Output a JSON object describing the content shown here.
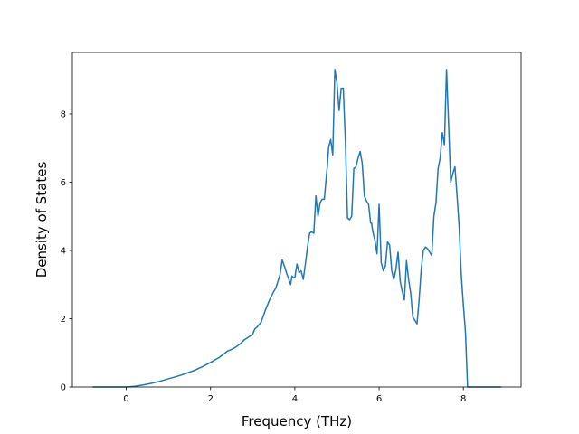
{
  "chart_data": {
    "type": "line",
    "title": "",
    "xlabel": "Frequency (THz)",
    "ylabel": "Density of States",
    "xlim": [
      -1.28,
      9.37
    ],
    "ylim": [
      0,
      9.8
    ],
    "xticks": [
      0,
      2,
      4,
      6,
      8
    ],
    "xtick_labels": [
      "0",
      "2",
      "4",
      "6",
      "8"
    ],
    "yticks": [
      0,
      2,
      4,
      6,
      8
    ],
    "ytick_labels": [
      "0",
      "2",
      "4",
      "6",
      "8"
    ],
    "grid": false,
    "legend": "none",
    "colors": {
      "line": "#1f77b4",
      "axes": "#000000",
      "background": "#ffffff"
    },
    "series": [
      {
        "x": [
          -0.8,
          -0.4,
          0.0,
          0.2,
          0.4,
          0.6,
          0.8,
          1.0,
          1.2,
          1.4,
          1.6,
          1.8,
          2.0,
          2.2,
          2.4,
          2.5,
          2.6,
          2.7,
          2.8,
          2.9,
          3.0,
          3.05,
          3.1,
          3.2,
          3.3,
          3.4,
          3.5,
          3.55,
          3.6,
          3.65,
          3.7,
          3.75,
          3.8,
          3.9,
          3.93,
          3.97,
          4.0,
          4.05,
          4.1,
          4.15,
          4.2,
          4.25,
          4.3,
          4.35,
          4.4,
          4.45,
          4.5,
          4.55,
          4.6,
          4.65,
          4.7,
          4.75,
          4.77,
          4.8,
          4.85,
          4.9,
          4.95,
          5.0,
          5.05,
          5.1,
          5.15,
          5.2,
          5.25,
          5.3,
          5.35,
          5.4,
          5.45,
          5.5,
          5.55,
          5.6,
          5.65,
          5.7,
          5.75,
          5.8,
          5.82,
          5.85,
          5.9,
          5.95,
          6.0,
          6.05,
          6.1,
          6.15,
          6.2,
          6.25,
          6.3,
          6.35,
          6.4,
          6.45,
          6.5,
          6.55,
          6.6,
          6.65,
          6.7,
          6.75,
          6.8,
          6.9,
          6.95,
          7.0,
          7.05,
          7.1,
          7.15,
          7.2,
          7.25,
          7.3,
          7.35,
          7.4,
          7.45,
          7.5,
          7.55,
          7.6,
          7.65,
          7.7,
          7.75,
          7.8,
          7.85,
          7.9,
          7.95,
          8.0,
          8.05,
          8.1,
          8.3,
          8.6,
          8.9
        ],
        "y": [
          0.0,
          0.0,
          0.0,
          0.02,
          0.06,
          0.11,
          0.17,
          0.24,
          0.31,
          0.39,
          0.48,
          0.59,
          0.72,
          0.86,
          1.05,
          1.1,
          1.17,
          1.26,
          1.38,
          1.46,
          1.55,
          1.7,
          1.75,
          1.9,
          2.25,
          2.55,
          2.8,
          2.9,
          3.1,
          3.3,
          3.72,
          3.55,
          3.35,
          3.0,
          3.25,
          3.2,
          3.2,
          3.6,
          3.35,
          3.4,
          3.15,
          3.6,
          4.1,
          4.5,
          4.55,
          4.5,
          5.6,
          5.0,
          5.4,
          5.5,
          5.5,
          6.2,
          6.45,
          7.0,
          7.25,
          6.8,
          9.3,
          8.9,
          8.1,
          8.75,
          8.75,
          7.2,
          4.95,
          4.9,
          5.0,
          6.4,
          6.45,
          6.7,
          6.9,
          6.55,
          5.6,
          5.45,
          5.35,
          4.8,
          4.8,
          4.55,
          4.3,
          3.9,
          5.35,
          3.65,
          3.4,
          3.55,
          4.25,
          4.15,
          3.4,
          3.15,
          3.45,
          3.95,
          3.1,
          2.8,
          2.55,
          3.7,
          3.15,
          2.75,
          2.05,
          1.85,
          2.55,
          3.45,
          4.0,
          4.1,
          4.05,
          3.95,
          3.85,
          5.0,
          5.4,
          6.4,
          6.7,
          7.45,
          7.1,
          9.3,
          7.7,
          6.0,
          6.25,
          6.45,
          5.6,
          4.7,
          3.3,
          2.4,
          1.6,
          0.0,
          0.0,
          0.0,
          0.0
        ]
      }
    ]
  }
}
